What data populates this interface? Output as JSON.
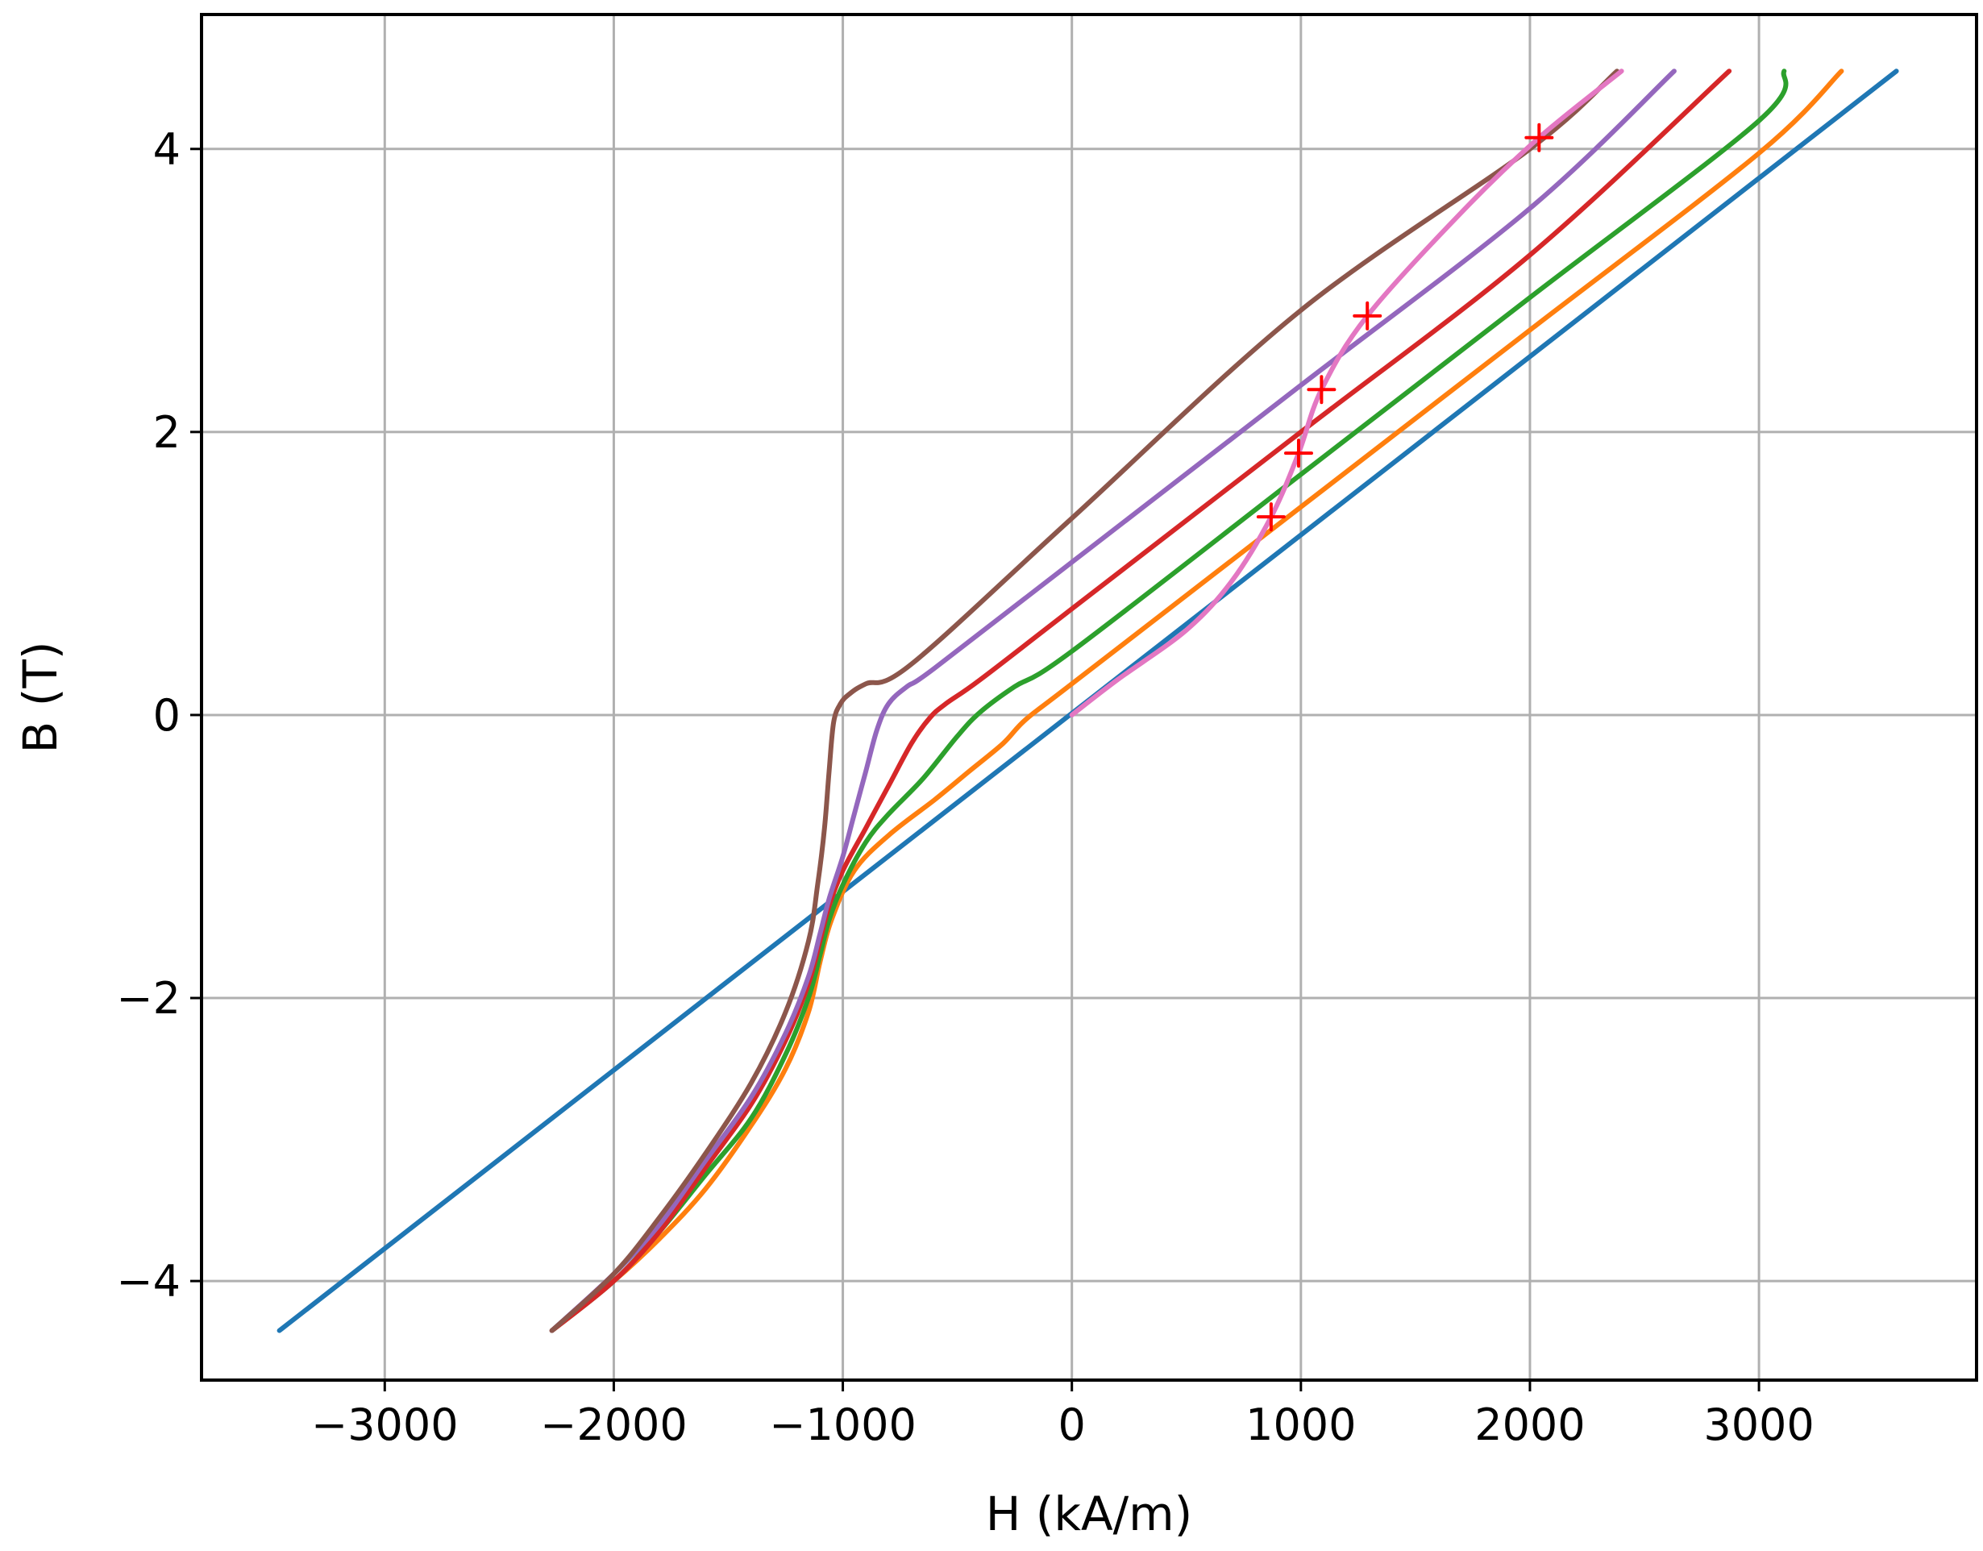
{
  "chart_data": {
    "type": "line",
    "title": "",
    "xlabel": "H (kA/m)",
    "ylabel": "B (T)",
    "xlim": [
      -3800,
      3950
    ],
    "ylim": [
      -4.7,
      4.95
    ],
    "xticks": [
      -3000,
      -2000,
      -1000,
      0,
      1000,
      2000,
      3000
    ],
    "xtick_labels": [
      "−3000",
      "−2000",
      "−1000",
      "0",
      "1000",
      "2000",
      "3000"
    ],
    "yticks": [
      -4,
      -2,
      0,
      2,
      4
    ],
    "ytick_labels": [
      "−4",
      "−2",
      "0",
      "2",
      "4"
    ],
    "grid": true,
    "legend": "none",
    "series": [
      {
        "color": "#1f77b4",
        "x": [
          -3460,
          3600
        ],
        "y": [
          -4.35,
          4.55
        ]
      },
      {
        "color": "#ff7f0e",
        "x": [
          -2270,
          -2000,
          -1800,
          -1600,
          -1400,
          -1250,
          -1150,
          -1100,
          -1050,
          -950,
          -800,
          -600,
          -450,
          -300,
          -200,
          0,
          1000,
          2000,
          3000,
          3360
        ],
        "y": [
          -4.35,
          -4.0,
          -3.7,
          -3.35,
          -2.9,
          -2.5,
          -2.1,
          -1.75,
          -1.45,
          -1.1,
          -0.85,
          -0.6,
          -0.4,
          -0.2,
          -0.03,
          0.22,
          1.47,
          2.72,
          3.97,
          4.55
        ]
      },
      {
        "color": "#2ca02c",
        "x": [
          -2270,
          -2000,
          -1800,
          -1600,
          -1400,
          -1250,
          -1150,
          -1100,
          -1060,
          -1000,
          -900,
          -800,
          -650,
          -500,
          -400,
          -250,
          0,
          1000,
          2000,
          3000,
          3110
        ],
        "y": [
          -4.35,
          -4.0,
          -3.65,
          -3.25,
          -2.85,
          -2.4,
          -2.0,
          -1.7,
          -1.45,
          -1.2,
          -0.9,
          -0.7,
          -0.45,
          -0.15,
          0.02,
          0.2,
          0.45,
          1.7,
          2.95,
          4.2,
          4.55
        ]
      },
      {
        "color": "#d62728",
        "x": [
          -2270,
          -2000,
          -1800,
          -1600,
          -1400,
          -1250,
          -1150,
          -1100,
          -1060,
          -1000,
          -900,
          -800,
          -700,
          -620,
          -550,
          -400,
          0,
          1000,
          2000,
          2870
        ],
        "y": [
          -4.35,
          -4.0,
          -3.65,
          -3.2,
          -2.75,
          -2.3,
          -1.9,
          -1.6,
          -1.35,
          -1.1,
          -0.8,
          -0.5,
          -0.2,
          -0.02,
          0.08,
          0.25,
          0.75,
          2.0,
          3.25,
          4.55
        ]
      },
      {
        "color": "#9467bd",
        "x": [
          -2270,
          -2000,
          -1800,
          -1600,
          -1400,
          -1250,
          -1150,
          -1100,
          -1060,
          -1000,
          -950,
          -900,
          -850,
          -800,
          -720,
          -600,
          0,
          1000,
          2000,
          2630
        ],
        "y": [
          -4.35,
          -3.95,
          -3.6,
          -3.15,
          -2.7,
          -2.25,
          -1.85,
          -1.55,
          -1.3,
          -1.0,
          -0.7,
          -0.4,
          -0.1,
          0.08,
          0.2,
          0.33,
          1.08,
          2.33,
          3.58,
          4.55
        ]
      },
      {
        "color": "#8c564b",
        "x": [
          -2270,
          -2000,
          -1800,
          -1600,
          -1400,
          -1250,
          -1150,
          -1110,
          -1080,
          -1060,
          -1040,
          -1010,
          -970,
          -900,
          -700,
          0,
          1000,
          2000,
          2380
        ],
        "y": [
          -4.35,
          -3.95,
          -3.55,
          -3.1,
          -2.6,
          -2.1,
          -1.6,
          -1.2,
          -0.8,
          -0.4,
          -0.05,
          0.08,
          0.15,
          0.22,
          0.36,
          1.39,
          2.86,
          4.0,
          4.55
        ]
      },
      {
        "color": "#e377c2",
        "x": [
          0,
          200,
          500,
          700,
          870,
          990,
          1090,
          1290,
          1700,
          2040,
          2400
        ],
        "y": [
          0,
          0.25,
          0.6,
          0.95,
          1.4,
          1.85,
          2.3,
          2.82,
          3.55,
          4.08,
          4.55
        ]
      }
    ],
    "markers": {
      "color": "#ff0000",
      "symbol": "+",
      "x": [
        870,
        990,
        1090,
        1290,
        2040
      ],
      "y": [
        1.4,
        1.85,
        2.3,
        2.82,
        4.08
      ]
    }
  }
}
